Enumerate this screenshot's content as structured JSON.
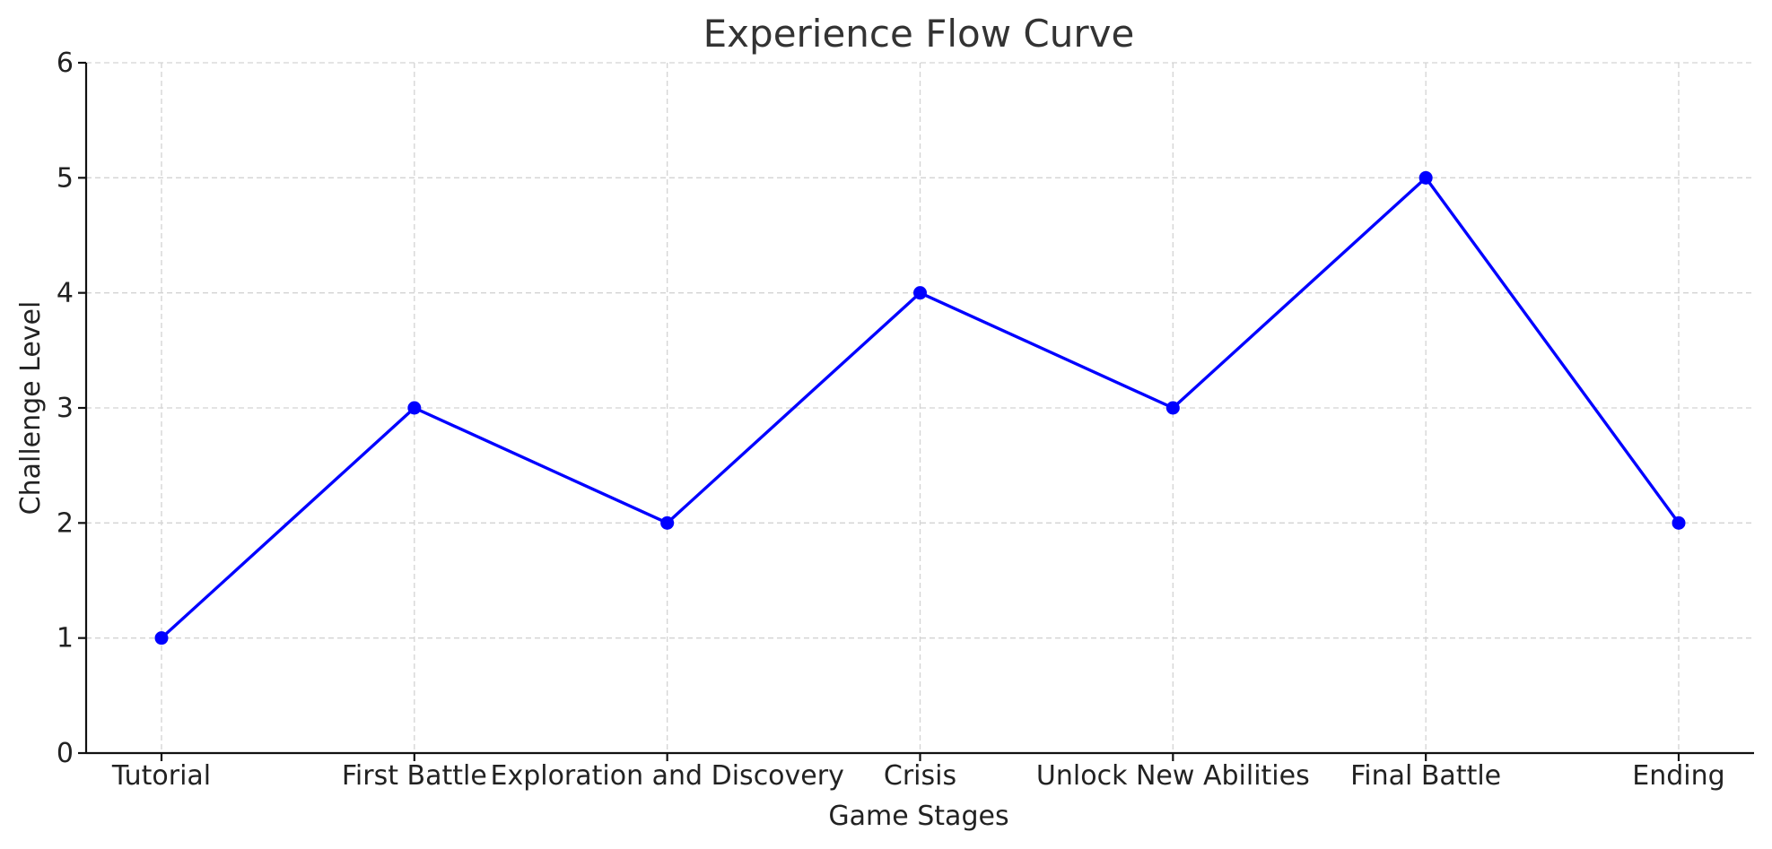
{
  "chart_data": {
    "type": "line",
    "title": "Experience Flow Curve",
    "xlabel": "Game Stages",
    "ylabel": "Challenge Level",
    "categories": [
      "Tutorial",
      "First Battle",
      "Exploration and Discovery",
      "Crisis",
      "Unlock New Abilities",
      "Final Battle",
      "Ending"
    ],
    "series": [
      {
        "values": [
          1,
          3,
          2,
          4,
          3,
          5,
          2
        ],
        "color": "#0000ff",
        "marker": "circle"
      }
    ],
    "ylim": [
      0,
      6
    ],
    "yticks": [
      0,
      1,
      2,
      3,
      4,
      5,
      6
    ],
    "grid": true
  }
}
